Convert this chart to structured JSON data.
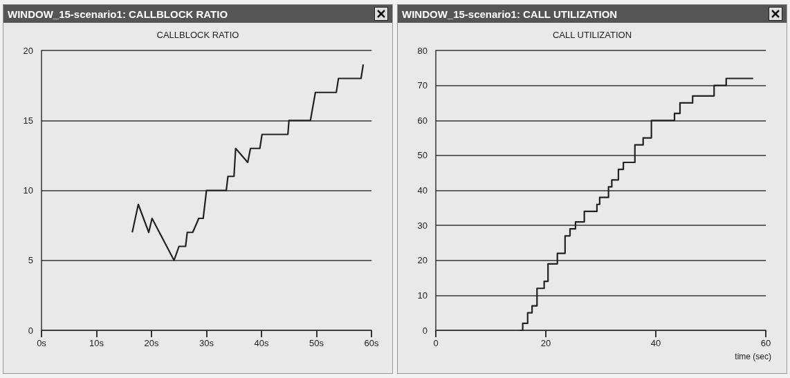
{
  "chart_data": [
    {
      "type": "line",
      "title": "WINDOW_15-scenario1: CALLBLOCK RATIO",
      "subtitle": "CALLBLOCK RATIO",
      "xlim": [
        0,
        60
      ],
      "xticks": [
        {
          "value": 0,
          "label": "0s"
        },
        {
          "value": 10,
          "label": "10s"
        },
        {
          "value": 20,
          "label": "20s"
        },
        {
          "value": 30,
          "label": "30s"
        },
        {
          "value": 40,
          "label": "40s"
        },
        {
          "value": 50,
          "label": "50s"
        },
        {
          "value": 60,
          "label": "60s"
        }
      ],
      "ylim": [
        0,
        20
      ],
      "yticks": [
        0,
        5,
        10,
        15,
        20
      ],
      "grid": "y",
      "series": [
        {
          "color": "#222222",
          "x": [
            16.5,
            17.6,
            19.5,
            20.1,
            24.1,
            25,
            26.2,
            26.5,
            27.5,
            28.6,
            29.4,
            30,
            33.6,
            33.9,
            35,
            35.3,
            37.5,
            38,
            39.7,
            40.1,
            44.8,
            45,
            48.9,
            49.8,
            53.6,
            54,
            58.1,
            58.5
          ],
          "values": [
            7,
            9,
            7,
            8,
            5,
            6,
            6,
            7,
            7,
            8,
            8,
            10,
            10,
            11,
            11,
            13,
            12,
            13,
            13,
            14,
            14,
            15,
            15,
            17,
            17,
            18,
            18,
            19
          ]
        }
      ]
    },
    {
      "type": "step",
      "title": "WINDOW_15-scenario1: CALL UTILIZATION",
      "subtitle": "CALL UTILIZATION",
      "xlabel": "time (sec)",
      "xlim": [
        0,
        60
      ],
      "xticks": [
        0,
        20,
        40,
        60
      ],
      "ylim": [
        0,
        80
      ],
      "yticks": [
        0,
        10,
        20,
        30,
        40,
        50,
        60,
        70,
        80
      ],
      "grid": "y",
      "series": [
        {
          "color": "#222222",
          "x": [
            15.3,
            15.8,
            16.7,
            17.5,
            18.4,
            19.7,
            20.4,
            22.1,
            23.5,
            24.4,
            25.4,
            27.0,
            29.3,
            29.8,
            31.4,
            32.0,
            33.2,
            34.1,
            36.2,
            37.7,
            39.2,
            43.4,
            44.4,
            46.7,
            50.6,
            52.8,
            57.7
          ],
          "values": [
            0,
            2,
            5,
            7,
            12,
            14,
            19,
            22,
            27,
            29,
            31,
            34,
            36,
            38,
            41,
            43,
            46,
            48,
            53,
            55,
            60,
            62,
            65,
            67,
            70,
            72,
            72
          ]
        }
      ]
    }
  ]
}
